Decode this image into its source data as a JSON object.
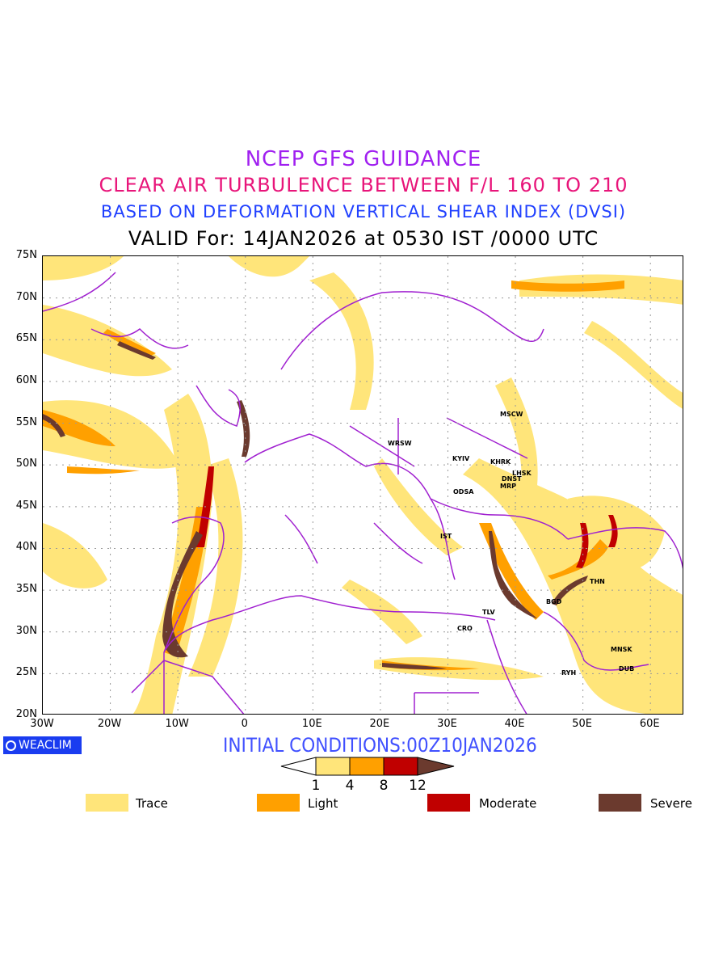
{
  "titles": {
    "line1": "NCEP GFS GUIDANCE",
    "line2": "CLEAR AIR TURBULENCE BETWEEN F/L 160 TO 210",
    "line3": "BASED ON DEFORMATION VERTICAL SHEAR INDEX (DVSI)",
    "line4": "VALID For: 14JAN2026 at 0530 IST /0000 UTC"
  },
  "axes": {
    "lat_labels": [
      "75N",
      "70N",
      "65N",
      "60N",
      "55N",
      "50N",
      "45N",
      "40N",
      "35N",
      "30N",
      "25N",
      "20N"
    ],
    "lon_labels": [
      "30W",
      "20W",
      "10W",
      "0",
      "10E",
      "20E",
      "30E",
      "40E",
      "50E",
      "60E"
    ]
  },
  "cities": [
    "MSCW",
    "WRSW",
    "KYIV",
    "KHRK",
    "LHSK",
    "DNST",
    "MRP",
    "ODSA",
    "IST",
    "THN",
    "BGD",
    "TLV",
    "CRO",
    "MNSK",
    "DUB",
    "RYH"
  ],
  "logo": "WEACLIM",
  "initial_conditions": "INITIAL CONDITIONS:00Z10JAN2026",
  "colorbar": {
    "thresholds": [
      "1",
      "4",
      "8",
      "12"
    ],
    "colors": [
      "#ffe57a",
      "#ffa000",
      "#c00000",
      "#6b3a2e"
    ]
  },
  "legend": [
    {
      "label": "Trace",
      "color": "#ffe57a"
    },
    {
      "label": "Light",
      "color": "#ffa000"
    },
    {
      "label": "Moderate",
      "color": "#c00000"
    },
    {
      "label": "Severe",
      "color": "#6b3a2e"
    }
  ],
  "colors": {
    "border": "#a020d0",
    "grid": "#999999"
  }
}
